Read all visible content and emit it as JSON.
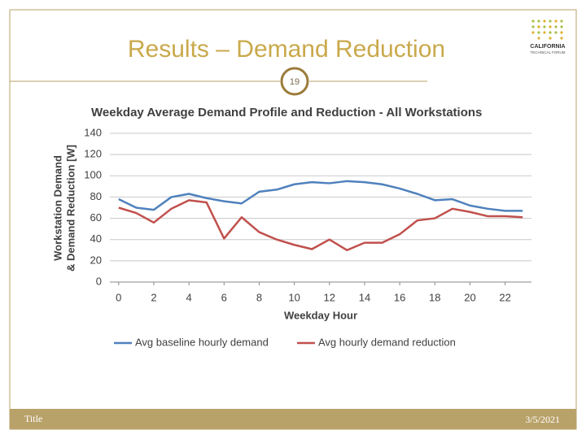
{
  "slide": {
    "title": "Results – Demand Reduction",
    "page_number": "19",
    "footer_left": "Title",
    "footer_right": "3/5/2021",
    "logo": [
      "CALIFORNIA",
      "TECHNICAL FORUM"
    ]
  },
  "chart_data": {
    "type": "line",
    "title": "Weekday Average Demand Profile and Reduction - All Workstations",
    "ylabel": [
      "Workstation Demand",
      "& Demand Reduction [W]"
    ],
    "xlabel": "Weekday Hour",
    "x": [
      0,
      1,
      2,
      3,
      4,
      5,
      6,
      7,
      8,
      9,
      10,
      11,
      12,
      13,
      14,
      15,
      16,
      17,
      18,
      19,
      20,
      21,
      22,
      23
    ],
    "series": [
      {
        "name": "Avg baseline hourly demand",
        "color": "#4f81bd",
        "values": [
          78,
          70,
          68,
          80,
          83,
          79,
          76,
          74,
          85,
          87,
          92,
          94,
          93,
          95,
          94,
          92,
          88,
          83,
          77,
          78,
          72,
          69,
          67,
          67
        ]
      },
      {
        "name": "Avg hourly demand reduction",
        "color": "#c0504d",
        "values": [
          70,
          65,
          56,
          69,
          77,
          75,
          41,
          61,
          47,
          40,
          35,
          31,
          40,
          30,
          37,
          37,
          45,
          58,
          60,
          69,
          66,
          62,
          62,
          61
        ]
      }
    ],
    "xlim": [
      -0.5,
      23.5
    ],
    "xticks": [
      0,
      2,
      4,
      6,
      8,
      10,
      12,
      14,
      16,
      18,
      20,
      22
    ],
    "ylim": [
      0,
      140
    ],
    "yticks": [
      0,
      20,
      40,
      60,
      80,
      100,
      120,
      140
    ],
    "grid": true,
    "legend": "bottom"
  }
}
